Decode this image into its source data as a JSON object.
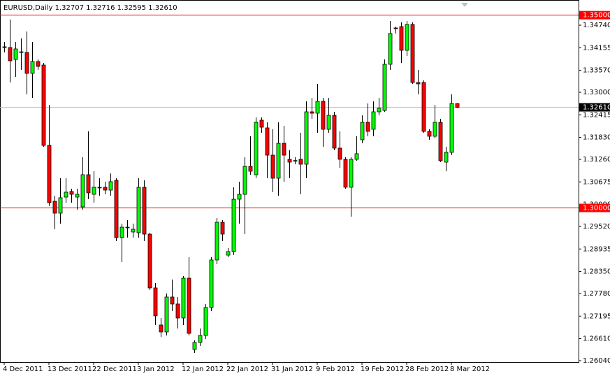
{
  "chart_data": {
    "type": "candlestick",
    "title": "EURUSD,Daily  1.32707 1.32716 1.32595 1.32610",
    "up_color": "#00ff00",
    "down_color": "#ff0000",
    "wick_color": "#000000",
    "categories": [
      "4 Dec 2011",
      null,
      null,
      null,
      null,
      null,
      null,
      null,
      "13 Dec 2011",
      null,
      null,
      null,
      null,
      null,
      null,
      null,
      "22 Dec 2011",
      null,
      null,
      null,
      null,
      null,
      null,
      null,
      "3 Jan 2012",
      null,
      null,
      null,
      null,
      null,
      null,
      null,
      "12 Jan 2012",
      null,
      null,
      null,
      null,
      null,
      null,
      null,
      "22 Jan 2012",
      null,
      null,
      null,
      null,
      null,
      null,
      null,
      "31 Jan 2012",
      null,
      null,
      null,
      null,
      null,
      null,
      null,
      "9 Feb 2012",
      null,
      null,
      null,
      null,
      null,
      null,
      null,
      "19 Feb 2012",
      null,
      null,
      null,
      null,
      null,
      null,
      null,
      "28 Feb 2012",
      null,
      null,
      null,
      null,
      null,
      null,
      null,
      "8 Mar 2012",
      null
    ],
    "open": [
      1.34179,
      1.34161,
      1.33852,
      1.34034,
      1.34034,
      1.3349,
      1.33798,
      1.33707,
      1.31623,
      1.30173,
      1.29865,
      1.30282,
      1.30427,
      1.30282,
      1.30028,
      1.30862,
      1.30354,
      1.30536,
      1.30536,
      1.30463,
      1.30717,
      1.29231,
      1.29502,
      1.29376,
      1.29357,
      1.30536,
      1.29321,
      1.27926,
      1.26965,
      1.26784,
      1.2769,
      1.27509,
      1.27146,
      1.28179,
      1.26331,
      1.26512,
      1.26693,
      1.27418,
      1.28651,
      1.29629,
      1.28777,
      1.28868,
      1.30227,
      1.30354,
      1.31079,
      1.30862,
      1.32276,
      1.32076,
      1.31369,
      1.30771,
      1.31677,
      1.31261,
      1.31224,
      1.31261,
      1.31134,
      1.32493,
      1.32457,
      1.32765,
      1.3204,
      1.32402,
      1.31551,
      1.31261,
      1.30536,
      1.31261,
      1.31768,
      1.32221,
      1.3204,
      1.32493,
      1.32529,
      1.33726,
      1.34668,
      1.34704,
      1.34088,
      1.34759,
      1.33254,
      1.33254,
      1.31986,
      1.31859,
      1.32221,
      1.31188,
      1.31442,
      1.32707
    ],
    "high": [
      1.34306,
      1.34885,
      1.34306,
      1.34396,
      1.34577,
      1.34306,
      1.33852,
      1.33762,
      1.32674,
      1.30318,
      1.30771,
      1.30771,
      1.30499,
      1.30499,
      1.31315,
      1.31986,
      1.30952,
      1.30771,
      1.30681,
      1.30893,
      1.30771,
      1.29593,
      1.29684,
      1.29593,
      1.30771,
      1.30717,
      1.29357,
      1.28052,
      1.27146,
      1.27781,
      1.28143,
      1.2769,
      1.28234,
      1.28723,
      1.26566,
      1.26874,
      1.27509,
      1.28723,
      1.29738,
      1.29684,
      1.28959,
      1.30536,
      1.30681,
      1.31315,
      1.31859,
      1.32348,
      1.32348,
      1.32221,
      1.3204,
      1.32221,
      1.3213,
      1.31496,
      1.31315,
      1.31949,
      1.32765,
      1.32856,
      1.33218,
      1.32856,
      1.32856,
      1.32493,
      1.31986,
      1.31315,
      1.31315,
      1.31859,
      1.32402,
      1.32711,
      1.32765,
      1.32856,
      1.33852,
      1.34849,
      1.34704,
      1.34813,
      1.34849,
      1.34813,
      1.33581,
      1.33309,
      1.3204,
      1.32674,
      1.32312,
      1.31587,
      1.32946,
      1.32716
    ],
    "low": [
      1.34034,
      1.33254,
      1.33399,
      1.33581,
      1.32946,
      1.32856,
      1.33581,
      1.31587,
      1.30046,
      1.29448,
      1.29593,
      1.30137,
      1.30137,
      1.29956,
      1.29956,
      1.30227,
      1.30137,
      1.30318,
      1.30354,
      1.30318,
      1.2914,
      1.28596,
      1.29231,
      1.29231,
      1.29231,
      1.2914,
      1.27871,
      1.26965,
      1.26657,
      1.26693,
      1.27327,
      1.26874,
      1.26965,
      1.26693,
      1.2624,
      1.26421,
      1.26602,
      1.27327,
      1.28542,
      1.2914,
      1.28723,
      1.28777,
      1.29593,
      1.29321,
      1.30862,
      1.30771,
      1.31949,
      1.30771,
      1.30409,
      1.30318,
      1.30681,
      1.30771,
      1.31134,
      1.30354,
      1.30771,
      1.32312,
      1.31949,
      1.31587,
      1.31949,
      1.31496,
      1.31043,
      1.30499,
      1.29774,
      1.31224,
      1.31677,
      1.31859,
      1.31859,
      1.32402,
      1.32493,
      1.33581,
      1.34523,
      1.33762,
      1.33943,
      1.33218,
      1.32946,
      1.31949,
      1.31768,
      1.31804,
      1.31188,
      1.30952,
      1.31369,
      1.32595
    ],
    "close": [
      1.34161,
      1.33816,
      1.34124,
      1.3405,
      1.3349,
      1.33798,
      1.33671,
      1.31623,
      1.30137,
      1.29865,
      1.30264,
      1.30409,
      1.30354,
      1.30354,
      1.30862,
      1.30391,
      1.30536,
      1.3052,
      1.30463,
      1.30681,
      1.29231,
      1.29502,
      1.2949,
      1.29448,
      1.30536,
      1.29321,
      1.27926,
      1.27201,
      1.26784,
      1.2769,
      1.27509,
      1.27146,
      1.28179,
      1.26747,
      1.26512,
      1.26693,
      1.27418,
      1.28651,
      1.29629,
      1.29321,
      1.28868,
      1.30227,
      1.30354,
      1.31079,
      1.30952,
      1.32221,
      1.32094,
      1.31369,
      1.30771,
      1.31677,
      1.31369,
      1.31188,
      1.3123,
      1.31134,
      1.32493,
      1.32457,
      1.32765,
      1.3204,
      1.32402,
      1.31551,
      1.31261,
      1.30536,
      1.31261,
      1.31406,
      1.32221,
      1.31986,
      1.32493,
      1.32584,
      1.33726,
      1.34523,
      1.3465,
      1.34088,
      1.34759,
      1.33254,
      1.33218,
      1.31986,
      1.31859,
      1.32221,
      1.31224,
      1.31442,
      1.32711,
      1.3261
    ],
    "ylim": [
      1.26004,
      1.35393
    ],
    "yticks": [
      {
        "value": 1.3474,
        "label": "1.34740"
      },
      1.34155,
      {
        "value": 1.3357,
        "label": "1.33570"
      },
      {
        "value": 1.33,
        "label": "1.33000"
      },
      1.32415,
      {
        "value": 1.3183,
        "label": "1.31830"
      },
      {
        "value": 1.3126,
        "label": "1.31260"
      },
      1.30675,
      {
        "value": 1.3009,
        "label": "1.30090"
      },
      {
        "value": 1.2952,
        "label": "1.29520"
      },
      1.28935,
      {
        "value": 1.2835,
        "label": "1.28350"
      },
      {
        "value": 1.2778,
        "label": "1.27780"
      },
      1.27195,
      {
        "value": 1.2661,
        "label": "1.26610"
      },
      {
        "value": 1.2604,
        "label": "1.26040"
      }
    ],
    "levels": [
      {
        "value": 1.35,
        "label": "1.35000",
        "color": "#ff0000",
        "label_color": "#ff0000"
      },
      {
        "value": 1.3,
        "label": "1.30000",
        "color": "#ff0000",
        "label_color": "#ff0000"
      },
      {
        "value": 1.3261,
        "label": "1.32610",
        "color": "#c0c0c0",
        "label_color": "#000000"
      }
    ]
  }
}
